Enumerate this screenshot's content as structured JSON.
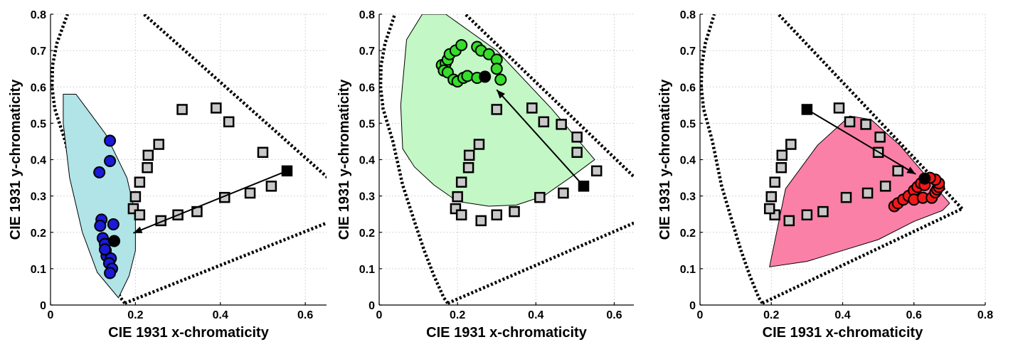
{
  "colors": {
    "square_fill": "#c8c8c8",
    "start_marker": "#000000",
    "arrow": "#000000"
  },
  "chart_data": [
    {
      "type": "scatter",
      "panel": "blue",
      "xlabel": "CIE 1931 x-chromaticity",
      "ylabel": "CIE 1931 y-chromaticity",
      "xlim": [
        0,
        0.65
      ],
      "ylim": [
        0,
        0.8
      ],
      "xticks": [
        0,
        0.2,
        0.4,
        0.6
      ],
      "xtick_labels": [
        "0",
        "0.2",
        "0.4",
        "0.6"
      ],
      "yticks": [
        0,
        0.1,
        0.2,
        0.3,
        0.4,
        0.5,
        0.6,
        0.7,
        0.8
      ],
      "ytick_labels": [
        "0",
        "0.1",
        "0.2",
        "0.3",
        "0.4",
        "0.5",
        "0.6",
        "0.7",
        "0.8"
      ],
      "grid": true,
      "region_color": "#b0e4e6",
      "point_color": "#1a1ad8",
      "squares": [
        [
          0.31,
          0.538
        ],
        [
          0.39,
          0.542
        ],
        [
          0.42,
          0.504
        ],
        [
          0.255,
          0.442
        ],
        [
          0.23,
          0.412
        ],
        [
          0.228,
          0.378
        ],
        [
          0.21,
          0.338
        ],
        [
          0.2,
          0.298
        ],
        [
          0.195,
          0.265
        ],
        [
          0.21,
          0.248
        ],
        [
          0.26,
          0.232
        ],
        [
          0.3,
          0.248
        ],
        [
          0.345,
          0.257
        ],
        [
          0.41,
          0.296
        ],
        [
          0.47,
          0.308
        ],
        [
          0.52,
          0.327
        ],
        [
          0.5,
          0.42
        ]
      ],
      "points": [
        [
          0.14,
          0.452
        ],
        [
          0.14,
          0.396
        ],
        [
          0.115,
          0.365
        ],
        [
          0.12,
          0.235
        ],
        [
          0.117,
          0.218
        ],
        [
          0.148,
          0.222
        ],
        [
          0.123,
          0.184
        ],
        [
          0.128,
          0.168
        ],
        [
          0.13,
          0.15
        ],
        [
          0.132,
          0.135
        ],
        [
          0.142,
          0.128
        ],
        [
          0.138,
          0.115
        ],
        [
          0.145,
          0.1
        ],
        [
          0.14,
          0.088
        ],
        [
          0.128,
          0.153
        ]
      ],
      "start": [
        0.557,
        0.369
      ],
      "end": [
        0.15,
        0.176
      ],
      "arrow_head": [
        0.195,
        0.198
      ],
      "gamut": [
        [
          0.03,
          0.58
        ],
        [
          0.06,
          0.58
        ],
        [
          0.13,
          0.47
        ],
        [
          0.18,
          0.35
        ],
        [
          0.2,
          0.25
        ],
        [
          0.2,
          0.15
        ],
        [
          0.185,
          0.08
        ],
        [
          0.16,
          0.02
        ],
        [
          0.11,
          0.09
        ],
        [
          0.075,
          0.2
        ],
        [
          0.045,
          0.35
        ],
        [
          0.03,
          0.5
        ]
      ]
    },
    {
      "type": "scatter",
      "panel": "green",
      "xlabel": "CIE 1931 x-chromaticity",
      "ylabel": "CIE 1931 y-chromaticity",
      "xlim": [
        0,
        0.65
      ],
      "ylim": [
        0,
        0.8
      ],
      "xticks": [
        0,
        0.2,
        0.4,
        0.6
      ],
      "xtick_labels": [
        "0",
        "0.2",
        "0.4",
        "0.6"
      ],
      "yticks": [
        0,
        0.1,
        0.2,
        0.3,
        0.4,
        0.5,
        0.6,
        0.7,
        0.8
      ],
      "ytick_labels": [
        "0",
        "0.1",
        "0.2",
        "0.3",
        "0.4",
        "0.5",
        "0.6",
        "0.7",
        "0.8"
      ],
      "grid": true,
      "region_color": "#c3f7c5",
      "point_color": "#36dd2b",
      "squares": [
        [
          0.3,
          0.538
        ],
        [
          0.39,
          0.542
        ],
        [
          0.42,
          0.504
        ],
        [
          0.255,
          0.442
        ],
        [
          0.23,
          0.412
        ],
        [
          0.228,
          0.378
        ],
        [
          0.21,
          0.338
        ],
        [
          0.2,
          0.298
        ],
        [
          0.195,
          0.265
        ],
        [
          0.21,
          0.248
        ],
        [
          0.26,
          0.232
        ],
        [
          0.3,
          0.248
        ],
        [
          0.345,
          0.257
        ],
        [
          0.41,
          0.296
        ],
        [
          0.47,
          0.308
        ],
        [
          0.555,
          0.369
        ],
        [
          0.505,
          0.462
        ],
        [
          0.505,
          0.42
        ],
        [
          0.465,
          0.497
        ]
      ],
      "points": [
        [
          0.16,
          0.66
        ],
        [
          0.17,
          0.665
        ],
        [
          0.175,
          0.675
        ],
        [
          0.18,
          0.69
        ],
        [
          0.195,
          0.7
        ],
        [
          0.21,
          0.715
        ],
        [
          0.25,
          0.71
        ],
        [
          0.26,
          0.7
        ],
        [
          0.28,
          0.69
        ],
        [
          0.3,
          0.675
        ],
        [
          0.3,
          0.65
        ],
        [
          0.31,
          0.62
        ],
        [
          0.165,
          0.645
        ],
        [
          0.175,
          0.64
        ],
        [
          0.19,
          0.62
        ],
        [
          0.2,
          0.615
        ],
        [
          0.215,
          0.625
        ],
        [
          0.225,
          0.63
        ],
        [
          0.25,
          0.625
        ]
      ],
      "start": [
        0.522,
        0.327
      ],
      "end": [
        0.27,
        0.628
      ],
      "arrow_head": [
        0.3,
        0.592
      ],
      "gamut": [
        [
          0.07,
          0.73
        ],
        [
          0.11,
          0.8
        ],
        [
          0.17,
          0.8
        ],
        [
          0.3,
          0.7
        ],
        [
          0.44,
          0.54
        ],
        [
          0.55,
          0.4
        ],
        [
          0.5,
          0.36
        ],
        [
          0.42,
          0.3
        ],
        [
          0.35,
          0.275
        ],
        [
          0.28,
          0.272
        ],
        [
          0.2,
          0.285
        ],
        [
          0.14,
          0.33
        ],
        [
          0.09,
          0.38
        ],
        [
          0.06,
          0.43
        ],
        [
          0.055,
          0.55
        ]
      ]
    },
    {
      "type": "scatter",
      "panel": "red",
      "xlabel": "CIE 1931 x-chromaticity",
      "ylabel": "CIE 1931 y-chromaticity",
      "xlim": [
        0,
        0.8
      ],
      "ylim": [
        0,
        0.8
      ],
      "xticks": [
        0,
        0.2,
        0.4,
        0.6,
        0.8
      ],
      "xtick_labels": [
        "0",
        "0.2",
        "0.4",
        "0.6",
        "0.8"
      ],
      "yticks": [
        0,
        0.1,
        0.2,
        0.3,
        0.4,
        0.5,
        0.6,
        0.7,
        0.8
      ],
      "ytick_labels": [
        "0",
        "0.1",
        "0.2",
        "0.3",
        "0.4",
        "0.5",
        "0.6",
        "0.7",
        "0.8"
      ],
      "grid": true,
      "region_color": "#fa80a8",
      "point_color": "#f21818",
      "squares": [
        [
          0.39,
          0.542
        ],
        [
          0.42,
          0.504
        ],
        [
          0.465,
          0.497
        ],
        [
          0.505,
          0.462
        ],
        [
          0.5,
          0.42
        ],
        [
          0.555,
          0.369
        ],
        [
          0.52,
          0.327
        ],
        [
          0.47,
          0.308
        ],
        [
          0.41,
          0.296
        ],
        [
          0.345,
          0.257
        ],
        [
          0.3,
          0.248
        ],
        [
          0.25,
          0.232
        ],
        [
          0.21,
          0.248
        ],
        [
          0.195,
          0.265
        ],
        [
          0.2,
          0.298
        ],
        [
          0.21,
          0.338
        ],
        [
          0.228,
          0.378
        ],
        [
          0.23,
          0.412
        ],
        [
          0.255,
          0.442
        ]
      ],
      "points": [
        [
          0.545,
          0.272
        ],
        [
          0.555,
          0.28
        ],
        [
          0.57,
          0.29
        ],
        [
          0.585,
          0.3
        ],
        [
          0.6,
          0.315
        ],
        [
          0.61,
          0.325
        ],
        [
          0.62,
          0.335
        ],
        [
          0.6,
          0.29
        ],
        [
          0.625,
          0.295
        ],
        [
          0.65,
          0.295
        ],
        [
          0.66,
          0.31
        ],
        [
          0.665,
          0.318
        ],
        [
          0.67,
          0.325
        ],
        [
          0.67,
          0.335
        ],
        [
          0.66,
          0.345
        ],
        [
          0.645,
          0.35
        ],
        [
          0.63,
          0.33
        ]
      ],
      "start": [
        0.3,
        0.538
      ],
      "end": [
        0.63,
        0.348
      ],
      "arrow_head": [
        0.605,
        0.36
      ],
      "gamut": [
        [
          0.195,
          0.105
        ],
        [
          0.24,
          0.32
        ],
        [
          0.33,
          0.44
        ],
        [
          0.42,
          0.52
        ],
        [
          0.48,
          0.51
        ],
        [
          0.56,
          0.44
        ],
        [
          0.7,
          0.28
        ],
        [
          0.68,
          0.26
        ],
        [
          0.6,
          0.23
        ],
        [
          0.5,
          0.18
        ],
        [
          0.4,
          0.15
        ],
        [
          0.3,
          0.12
        ]
      ]
    }
  ]
}
